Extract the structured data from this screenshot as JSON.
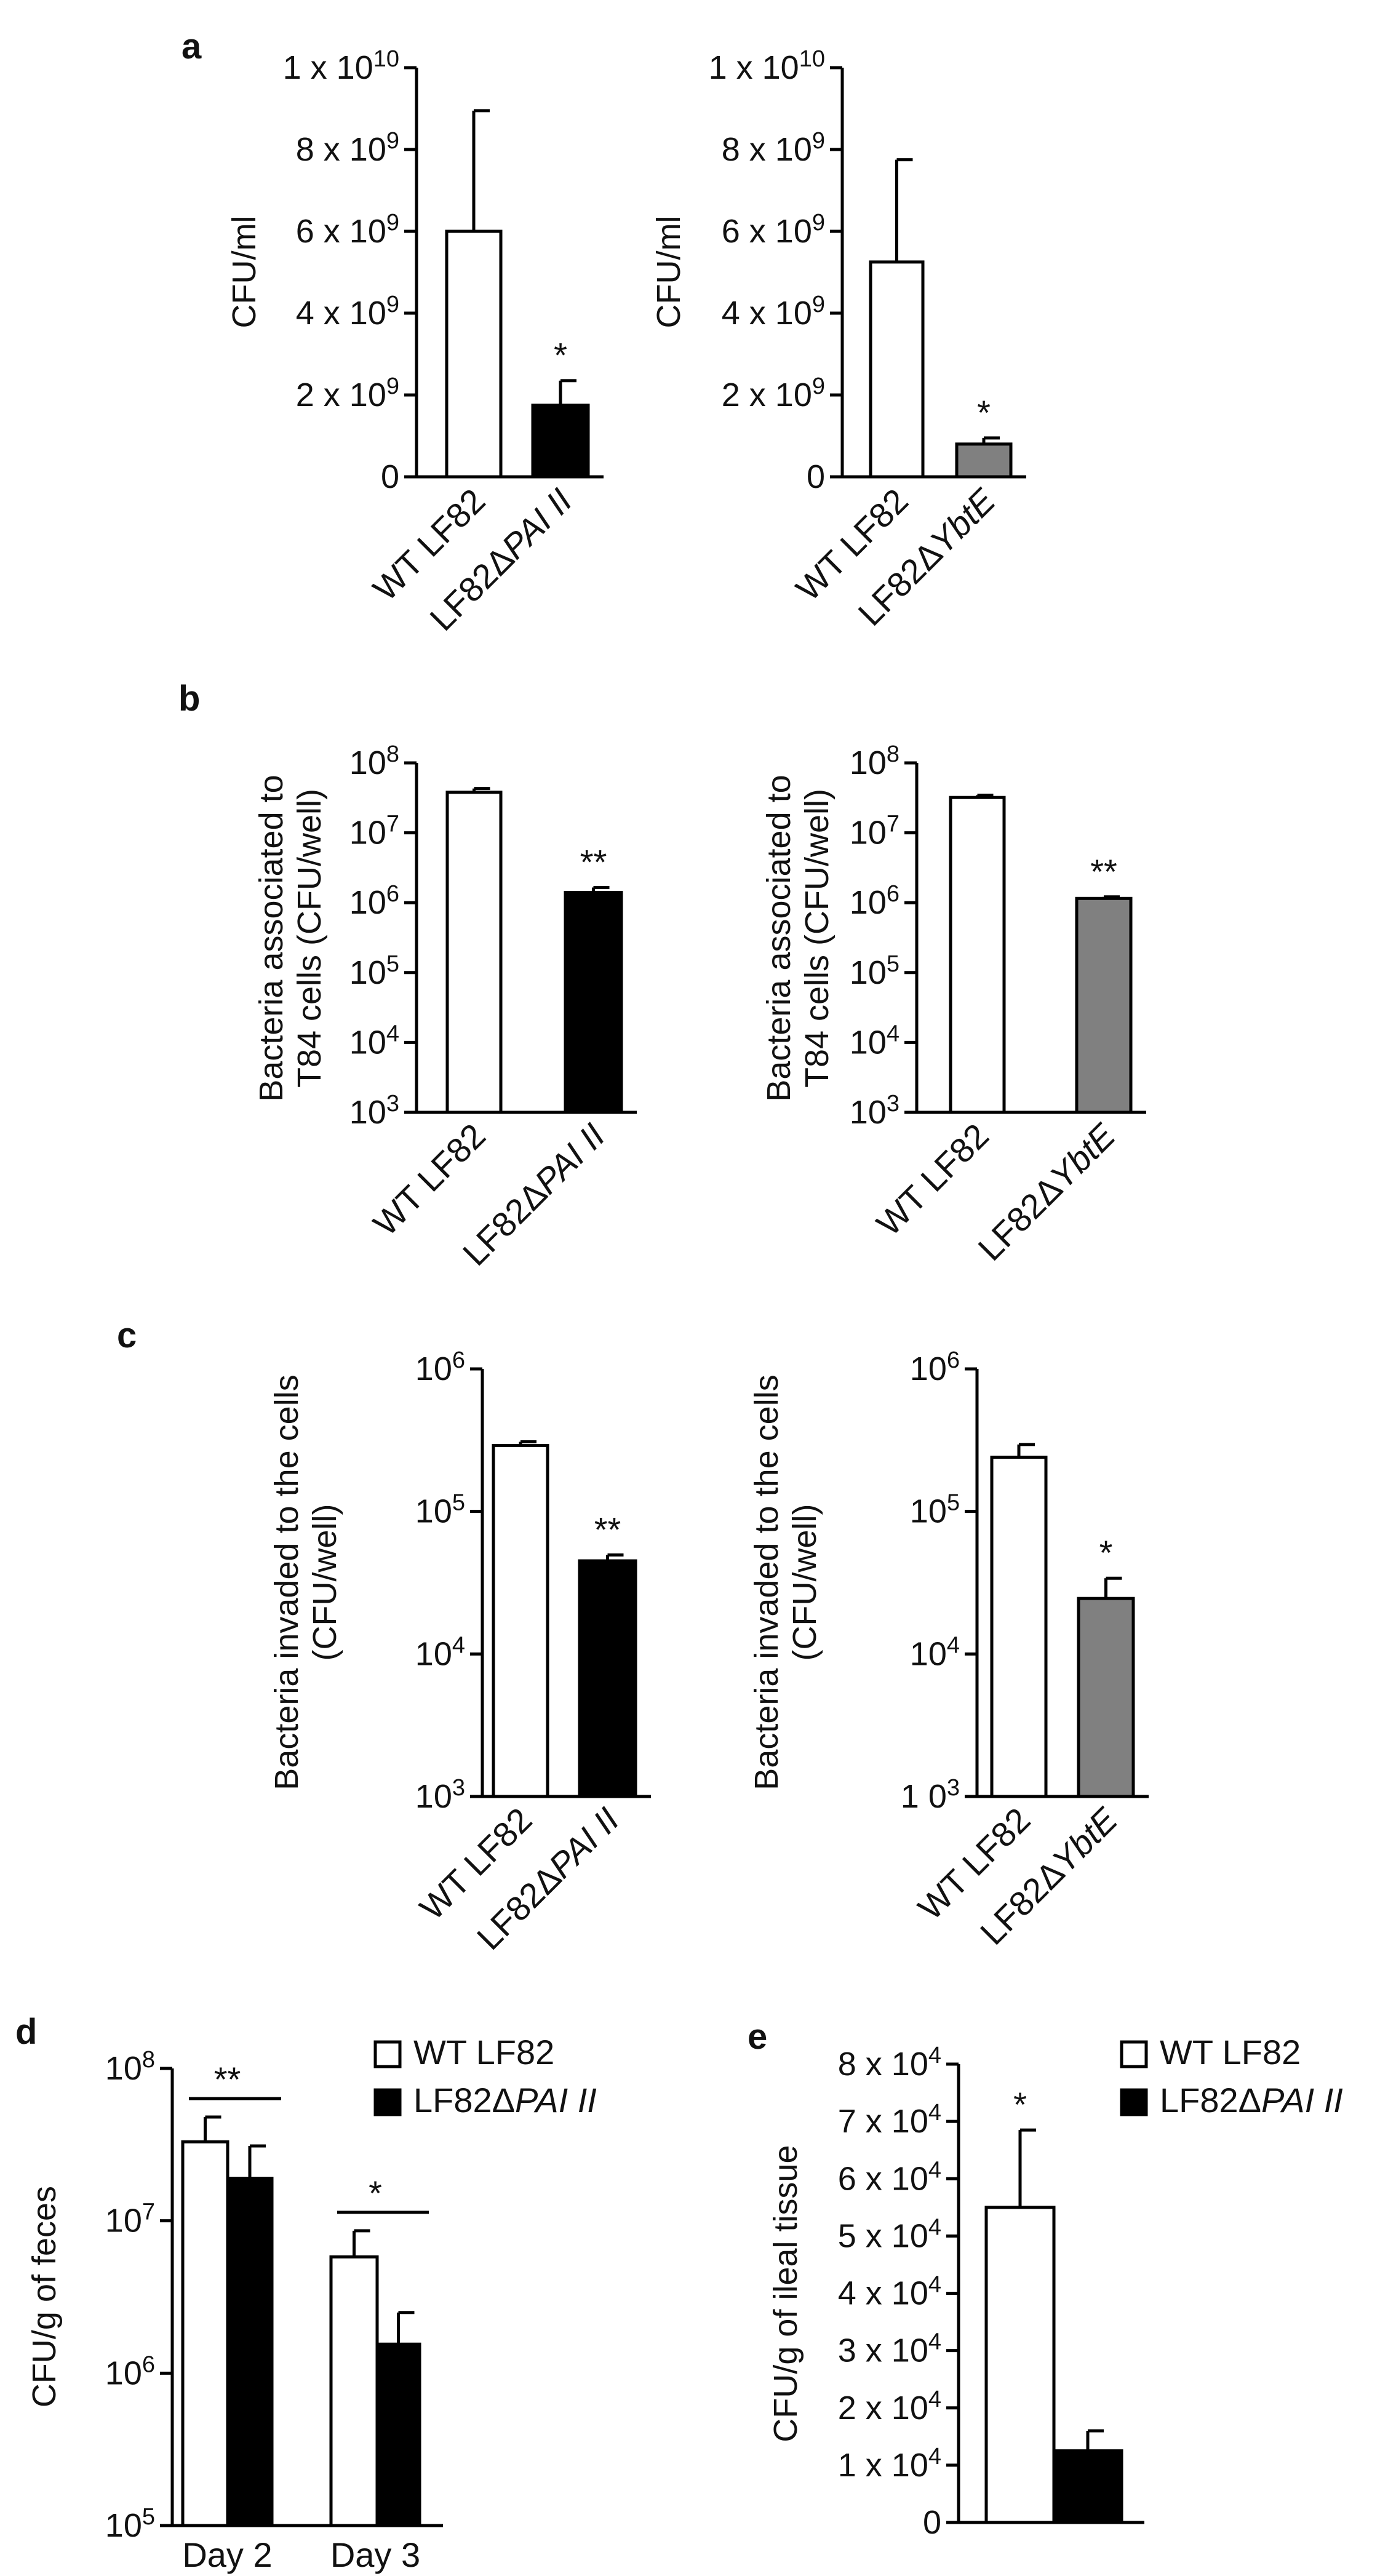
{
  "chart_data": [
    {
      "id": "a1",
      "panel": "a",
      "type": "bar",
      "scale": "linear",
      "ylabel": "CFU/ml",
      "ticks": [
        {
          "v": 0,
          "base": "0"
        },
        {
          "v": 2000000000.0,
          "base": "2 x 10",
          "exp": "9"
        },
        {
          "v": 4000000000.0,
          "base": "4 x 10",
          "exp": "9"
        },
        {
          "v": 6000000000.0,
          "base": "6 x 10",
          "exp": "9"
        },
        {
          "v": 8000000000.0,
          "base": "8 x 10",
          "exp": "9"
        },
        {
          "v": 10000000000.0,
          "base": "1 x 10",
          "exp": "10"
        }
      ],
      "ylim": [
        0,
        10000000000.0
      ],
      "categories": [
        {
          "pre": "WT LF82",
          "ital": ""
        },
        {
          "pre": "LF82Δ",
          "ital": "PAI II"
        }
      ],
      "values": [
        6000000000.0,
        1750000000.0
      ],
      "errors": [
        2950000000.0,
        600000000.0
      ],
      "fills": [
        "#ffffff",
        "#000000"
      ],
      "significance": [
        "",
        "*"
      ]
    },
    {
      "id": "a2",
      "panel": "",
      "type": "bar",
      "scale": "linear",
      "ylabel": "CFU/ml",
      "ticks": [
        {
          "v": 0,
          "base": "0"
        },
        {
          "v": 2000000000.0,
          "base": "2 x 10",
          "exp": "9"
        },
        {
          "v": 4000000000.0,
          "base": "4 x 10",
          "exp": "9"
        },
        {
          "v": 6000000000.0,
          "base": "6 x 10",
          "exp": "9"
        },
        {
          "v": 8000000000.0,
          "base": "8 x 10",
          "exp": "9"
        },
        {
          "v": 10000000000.0,
          "base": "1 x 10",
          "exp": "10"
        }
      ],
      "ylim": [
        0,
        10000000000.0
      ],
      "categories": [
        {
          "pre": "WT LF82",
          "ital": ""
        },
        {
          "pre": "LF82Δ",
          "ital": "YbtE"
        }
      ],
      "values": [
        5250000000.0,
        800000000.0
      ],
      "errors": [
        2500000000.0,
        150000000.0
      ],
      "fills": [
        "#ffffff",
        "#808080"
      ],
      "significance": [
        "",
        "*"
      ]
    },
    {
      "id": "b1",
      "panel": "b",
      "type": "bar",
      "scale": "log",
      "ylabel": [
        "Bacteria associated to",
        "T84 cells (CFU/well)"
      ],
      "ticks": [
        {
          "v": 1000.0,
          "base": "10",
          "exp": "3"
        },
        {
          "v": 10000.0,
          "base": "10",
          "exp": "4"
        },
        {
          "v": 100000.0,
          "base": "10",
          "exp": "5"
        },
        {
          "v": 1000000.0,
          "base": "10",
          "exp": "6"
        },
        {
          "v": 10000000.0,
          "base": "10",
          "exp": "7"
        },
        {
          "v": 100000000.0,
          "base": "10",
          "exp": "8"
        }
      ],
      "ylim": [
        1000.0,
        100000000.0
      ],
      "categories": [
        {
          "pre": "WT LF82",
          "ital": ""
        },
        {
          "pre": "LF82Δ",
          "ital": "PAI II"
        }
      ],
      "values": [
        38000000.0,
        1400000.0
      ],
      "errors": [
        5000000.0,
        250000.0
      ],
      "fills": [
        "#ffffff",
        "#000000"
      ],
      "significance": [
        "",
        "**"
      ]
    },
    {
      "id": "b2",
      "panel": "",
      "type": "bar",
      "scale": "log",
      "ylabel": [
        "Bacteria associated to",
        "T84 cells (CFU/well)"
      ],
      "ticks": [
        {
          "v": 1000.0,
          "base": "10",
          "exp": "3"
        },
        {
          "v": 10000.0,
          "base": "10",
          "exp": "4"
        },
        {
          "v": 100000.0,
          "base": "10",
          "exp": "5"
        },
        {
          "v": 1000000.0,
          "base": "10",
          "exp": "6"
        },
        {
          "v": 10000000.0,
          "base": "10",
          "exp": "7"
        },
        {
          "v": 100000000.0,
          "base": "10",
          "exp": "8"
        }
      ],
      "ylim": [
        1000.0,
        100000000.0
      ],
      "categories": [
        {
          "pre": "WT LF82",
          "ital": ""
        },
        {
          "pre": "LF82Δ",
          "ital": "YbtE"
        }
      ],
      "values": [
        32000000.0,
        1150000.0
      ],
      "errors": [
        2500000.0,
        60000.0
      ],
      "fills": [
        "#ffffff",
        "#808080"
      ],
      "significance": [
        "",
        "**"
      ]
    },
    {
      "id": "c1",
      "panel": "c",
      "type": "bar",
      "scale": "log",
      "ylabel": [
        "Bacteria invaded to the cells",
        "(CFU/well)"
      ],
      "ticks": [
        {
          "v": 1000.0,
          "base": "10",
          "exp": "3"
        },
        {
          "v": 10000.0,
          "base": "10",
          "exp": "4"
        },
        {
          "v": 100000.0,
          "base": "10",
          "exp": "5"
        },
        {
          "v": 1000000.0,
          "base": "10",
          "exp": "6"
        }
      ],
      "ylim": [
        1000.0,
        1000000.0
      ],
      "categories": [
        {
          "pre": "WT LF82",
          "ital": ""
        },
        {
          "pre": "LF82Δ",
          "ital": "PAI II"
        }
      ],
      "values": [
        290000.0,
        45000.0
      ],
      "errors": [
        18000.0,
        4500.0
      ],
      "fills": [
        "#ffffff",
        "#000000"
      ],
      "significance": [
        "",
        "**"
      ]
    },
    {
      "id": "c2",
      "panel": "",
      "type": "bar",
      "scale": "log",
      "ylabel": [
        "Bacteria invaded to the cells",
        "(CFU/well)"
      ],
      "ticks": [
        {
          "v": 1000.0,
          "base": "1 0",
          "exp": "3"
        },
        {
          "v": 10000.0,
          "base": "10",
          "exp": "4"
        },
        {
          "v": 100000.0,
          "base": "10",
          "exp": "5"
        },
        {
          "v": 1000000.0,
          "base": "10",
          "exp": "6"
        }
      ],
      "ylim": [
        1000.0,
        1000000.0
      ],
      "categories": [
        {
          "pre": "WT LF82",
          "ital": ""
        },
        {
          "pre": "LF82Δ",
          "ital": "YbtE"
        }
      ],
      "values": [
        240000.0,
        24500.0
      ],
      "errors": [
        55000.0,
        9500.0
      ],
      "fills": [
        "#ffffff",
        "#808080"
      ],
      "significance": [
        "",
        "*"
      ]
    },
    {
      "id": "d",
      "panel": "d",
      "type": "grouped-bar",
      "scale": "log",
      "ylabel": "CFU/g of feces",
      "ticks": [
        {
          "v": 100000.0,
          "base": "10",
          "exp": "5"
        },
        {
          "v": 1000000.0,
          "base": "10",
          "exp": "6"
        },
        {
          "v": 10000000.0,
          "base": "10",
          "exp": "7"
        },
        {
          "v": 100000000.0,
          "base": "10",
          "exp": "8"
        }
      ],
      "ylim": [
        100000.0,
        100000000.0
      ],
      "groups": [
        "Day 2",
        "Day 3"
      ],
      "series": [
        {
          "name_pre": "WT LF82",
          "name_ital": "",
          "fill": "#ffffff",
          "values": [
            33000000.0,
            5800000.0
          ],
          "errors": [
            15000000.0,
            2800000.0
          ]
        },
        {
          "name_pre": "LF82Δ",
          "name_ital": "PAI II",
          "fill": "#000000",
          "values": [
            19000000.0,
            1550000.0
          ],
          "errors": [
            12000000.0,
            950000.0
          ]
        }
      ],
      "significance": [
        "**",
        "*"
      ],
      "legend": "top-right"
    },
    {
      "id": "e",
      "panel": "e",
      "type": "bar",
      "scale": "linear",
      "ylabel": "CFU/g of ileal tissue",
      "ticks": [
        {
          "v": 0,
          "base": "0"
        },
        {
          "v": 10000.0,
          "base": "1 x 10",
          "exp": "4"
        },
        {
          "v": 20000.0,
          "base": "2 x 10",
          "exp": "4"
        },
        {
          "v": 30000.0,
          "base": "3 x 10",
          "exp": "4"
        },
        {
          "v": 40000.0,
          "base": "4 x 10",
          "exp": "4"
        },
        {
          "v": 50000.0,
          "base": "5 x 10",
          "exp": "4"
        },
        {
          "v": 60000.0,
          "base": "6 x 10",
          "exp": "4"
        },
        {
          "v": 70000.0,
          "base": "7 x 10",
          "exp": "4"
        },
        {
          "v": 80000.0,
          "base": "8 x 10",
          "exp": "4"
        }
      ],
      "ylim": [
        0,
        80000.0
      ],
      "series": [
        {
          "name_pre": "WT LF82",
          "name_ital": "",
          "fill": "#ffffff"
        },
        {
          "name_pre": "LF82Δ",
          "name_ital": "PAI II",
          "fill": "#000000"
        }
      ],
      "values": [
        55000.0,
        12500.0
      ],
      "errors": [
        13500.0,
        3500.0
      ],
      "significance": [
        "*",
        ""
      ],
      "legend": "top-right"
    }
  ]
}
